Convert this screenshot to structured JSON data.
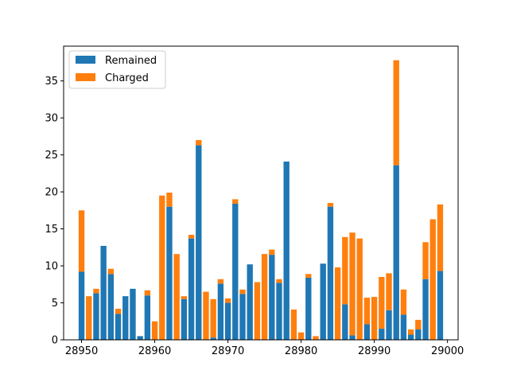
{
  "chart_data": {
    "type": "bar",
    "stacked": true,
    "title": "",
    "xlabel": "",
    "ylabel": "",
    "x": [
      28950,
      28951,
      28952,
      28953,
      28954,
      28955,
      28956,
      28957,
      28958,
      28959,
      28960,
      28961,
      28962,
      28963,
      28964,
      28965,
      28966,
      28967,
      28968,
      28969,
      28970,
      28971,
      28972,
      28973,
      28974,
      28975,
      28976,
      28977,
      28978,
      28979,
      28980,
      28981,
      28982,
      28983,
      28984,
      28985,
      28986,
      28987,
      28988,
      28989,
      28990,
      28991,
      28992,
      28993,
      28994,
      28995,
      28996,
      28997,
      28998,
      28999
    ],
    "series": [
      {
        "name": "Remained",
        "color": "#1f77b4",
        "values": [
          9.2,
          0,
          6.3,
          12.7,
          8.9,
          3.5,
          5.9,
          6.9,
          0.5,
          6.0,
          0,
          0,
          18.0,
          0,
          5.5,
          13.7,
          26.3,
          0,
          0.3,
          7.6,
          5.0,
          18.4,
          6.2,
          10.2,
          0,
          0,
          11.5,
          7.7,
          24.1,
          0,
          0,
          8.4,
          0,
          10.3,
          18.0,
          0,
          4.8,
          0.6,
          0,
          2.1,
          0,
          1.5,
          4.0,
          23.6,
          3.4,
          0.7,
          1.4,
          8.2,
          0,
          9.3
        ]
      },
      {
        "name": "Charged",
        "color": "#ff7f0e",
        "values": [
          8.3,
          5.9,
          0.6,
          0,
          0.7,
          0.7,
          0,
          0,
          0,
          0.7,
          2.5,
          19.5,
          1.9,
          11.6,
          0.4,
          0.5,
          0.7,
          6.5,
          5.2,
          0.6,
          0.6,
          0.6,
          0.6,
          0,
          7.8,
          11.6,
          0.7,
          0.5,
          0,
          4.1,
          1.0,
          0.5,
          0.5,
          0,
          0.5,
          9.8,
          9.1,
          13.9,
          13.7,
          3.6,
          5.8,
          7.0,
          5.0,
          14.2,
          3.4,
          0.7,
          1.3,
          5.0,
          16.3,
          9.0
        ]
      }
    ],
    "xlim": [
      28947.55,
      29001.45
    ],
    "ylim": [
      0,
      39.7
    ],
    "xticks": [
      28950,
      28960,
      28970,
      28980,
      28990,
      29000
    ],
    "yticks": [
      0,
      5,
      10,
      15,
      20,
      25,
      30,
      35
    ],
    "legend": "upper-left",
    "grid": false
  }
}
